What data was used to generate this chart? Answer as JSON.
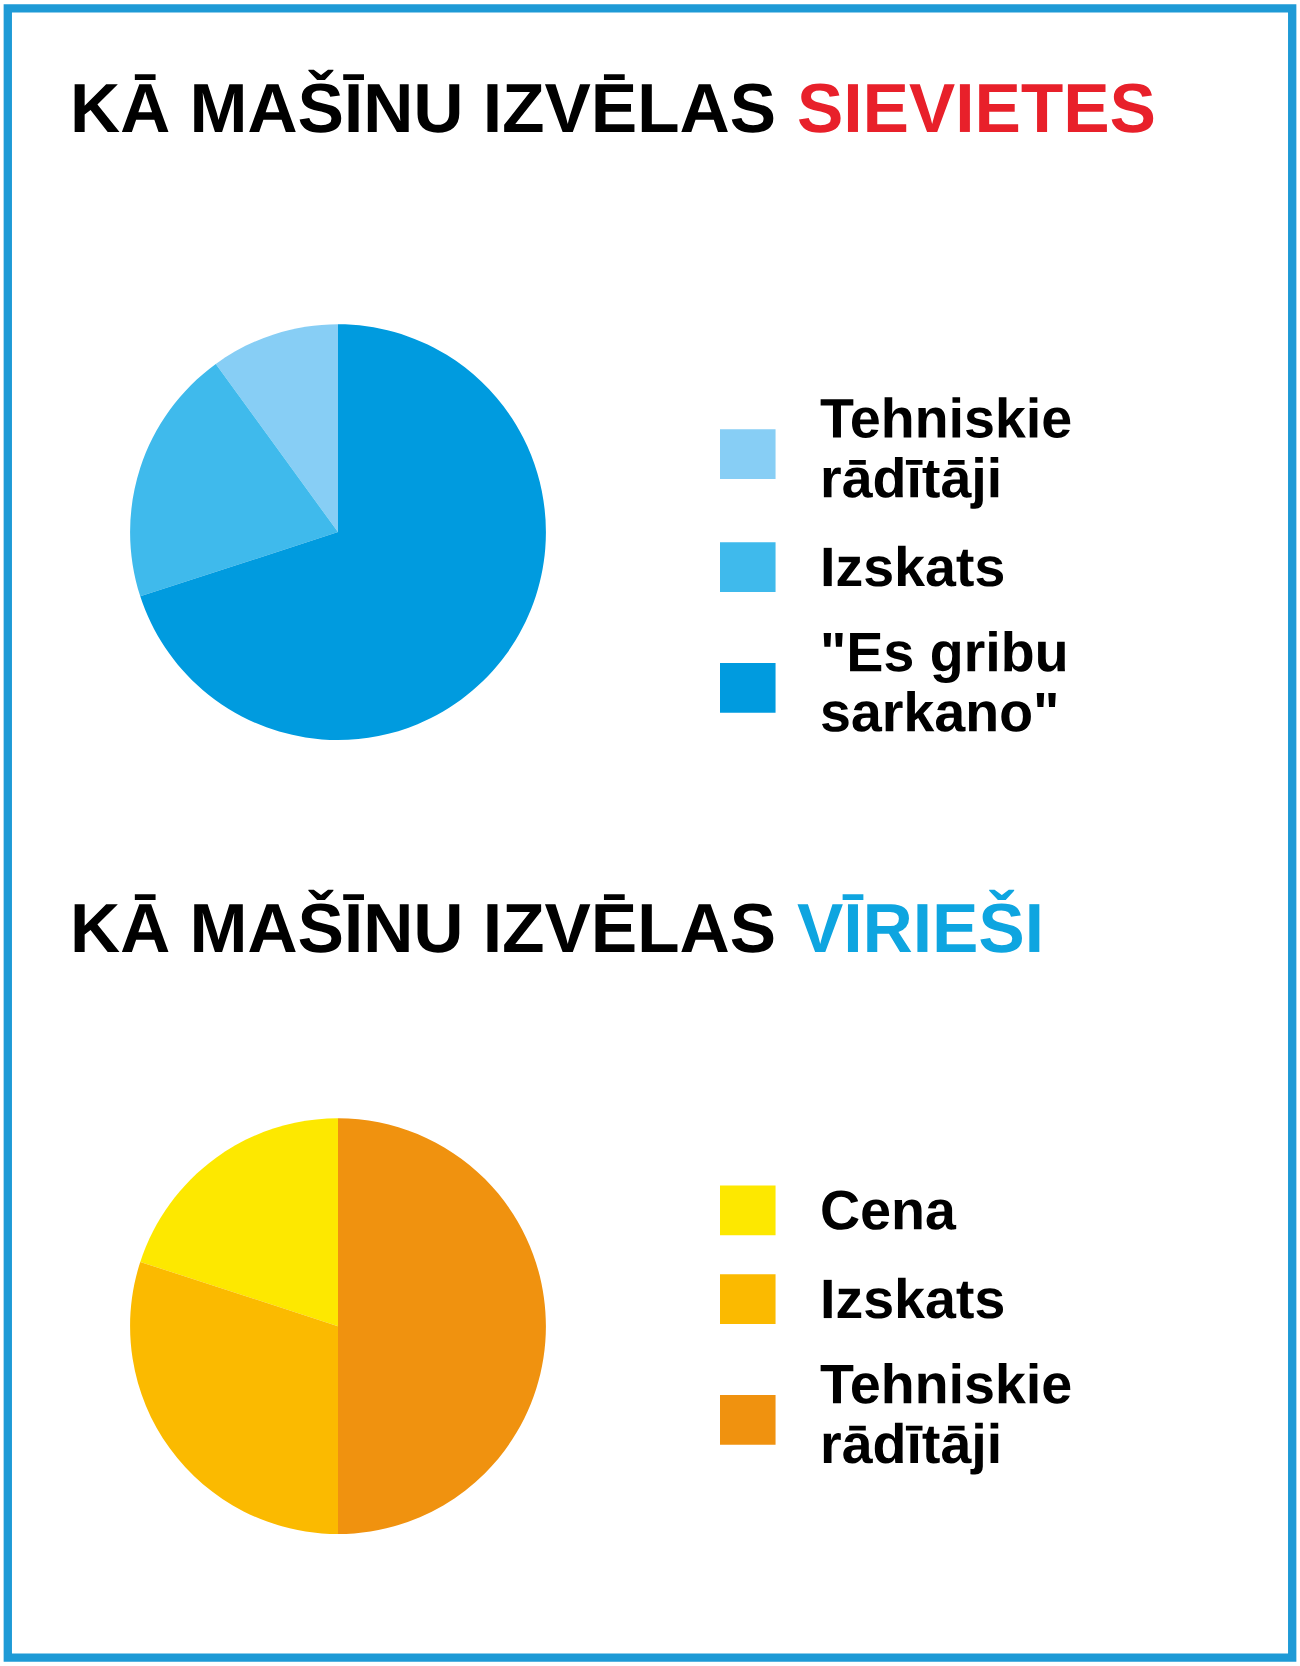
{
  "chart_data": [
    {
      "type": "pie",
      "title": "KĀ MAŠĪNU IZVĒLAS SIEVIETES",
      "categories": [
        "Tehniskie rādītāji",
        "Izskats",
        "\"Es gribu sarkano\""
      ],
      "values": [
        10,
        20,
        70
      ],
      "colors": [
        "#87cef5",
        "#3fbaec",
        "#009bdf"
      ],
      "legend": "right"
    },
    {
      "type": "pie",
      "title": "KĀ MAŠĪNU IZVĒLAS VĪRIEŠI",
      "categories": [
        "Cena",
        "Izskats",
        "Tehniskie rādītāji"
      ],
      "values": [
        20,
        30,
        50
      ],
      "colors": [
        "#fde800",
        "#fbba00",
        "#f0920f"
      ],
      "legend": "right"
    }
  ]
}
